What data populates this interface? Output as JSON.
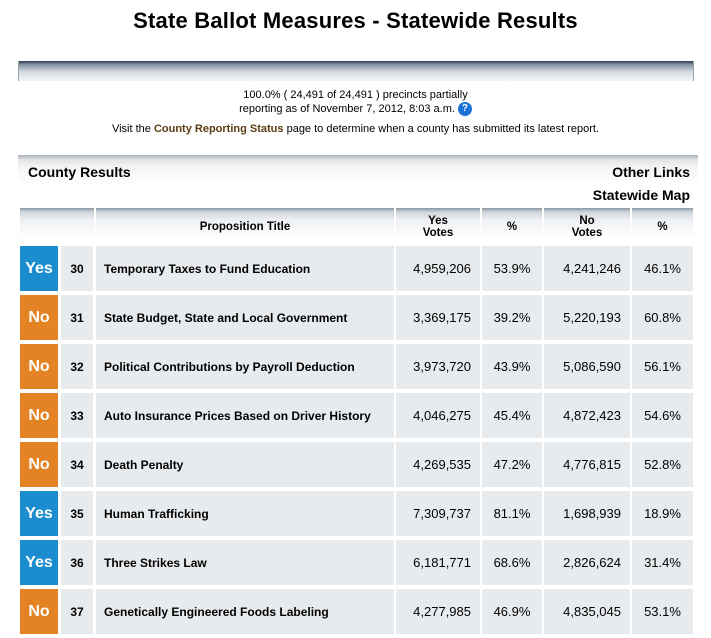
{
  "header": {
    "title": "State Ballot Measures - Statewide Results"
  },
  "status": {
    "line1": "100.0% ( 24,491 of 24,491 ) precincts partially",
    "line2": "reporting as of November 7, 2012, 8:03 a.m.",
    "help_glyph": "?",
    "visit_prefix": "Visit the",
    "link_label": "County Reporting Status",
    "visit_suffix": "page to determine when a county has submitted its latest report."
  },
  "links": {
    "county_results": "County Results",
    "other_links": "Other Links",
    "statewide_map": "Statewide Map"
  },
  "table": {
    "headers": {
      "proposition_title": "Proposition Title",
      "yes_votes_1": "Yes",
      "yes_votes_2": "Votes",
      "yes_pct": "%",
      "no_votes_1": "No",
      "no_votes_2": "Votes",
      "no_pct": "%"
    },
    "rows": [
      {
        "result": "Yes",
        "number": "30",
        "title": "Temporary Taxes to Fund Education",
        "yes_votes": "4,959,206",
        "yes_pct": "53.9%",
        "no_votes": "4,241,246",
        "no_pct": "46.1%"
      },
      {
        "result": "No",
        "number": "31",
        "title": "State Budget, State and Local Government",
        "yes_votes": "3,369,175",
        "yes_pct": "39.2%",
        "no_votes": "5,220,193",
        "no_pct": "60.8%"
      },
      {
        "result": "No",
        "number": "32",
        "title": "Political Contributions by Payroll Deduction",
        "yes_votes": "3,973,720",
        "yes_pct": "43.9%",
        "no_votes": "5,086,590",
        "no_pct": "56.1%"
      },
      {
        "result": "No",
        "number": "33",
        "title": "Auto Insurance Prices Based on Driver History",
        "yes_votes": "4,046,275",
        "yes_pct": "45.4%",
        "no_votes": "4,872,423",
        "no_pct": "54.6%"
      },
      {
        "result": "No",
        "number": "34",
        "title": "Death Penalty",
        "yes_votes": "4,269,535",
        "yes_pct": "47.2%",
        "no_votes": "4,776,815",
        "no_pct": "52.8%"
      },
      {
        "result": "Yes",
        "number": "35",
        "title": "Human Trafficking",
        "yes_votes": "7,309,737",
        "yes_pct": "81.1%",
        "no_votes": "1,698,939",
        "no_pct": "18.9%"
      },
      {
        "result": "Yes",
        "number": "36",
        "title": "Three Strikes Law",
        "yes_votes": "6,181,771",
        "yes_pct": "68.6%",
        "no_votes": "2,826,624",
        "no_pct": "31.4%"
      },
      {
        "result": "No",
        "number": "37",
        "title": "Genetically Engineered Foods Labeling",
        "yes_votes": "4,277,985",
        "yes_pct": "46.9%",
        "no_votes": "4,835,045",
        "no_pct": "53.1%"
      }
    ]
  },
  "colors": {
    "yes_badge": "#1b8ccd",
    "no_badge": "#e38323",
    "link": "#5b3b11",
    "row_bg": "#e8ebee"
  }
}
